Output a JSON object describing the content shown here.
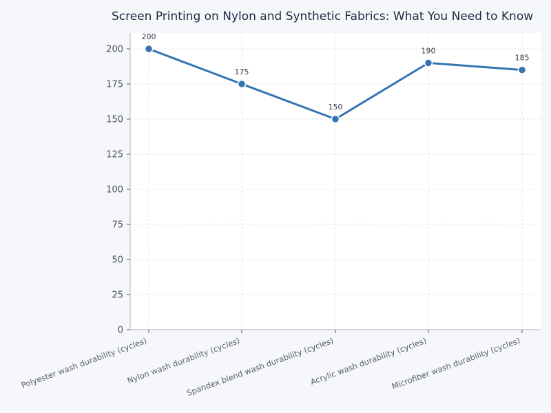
{
  "chart_data": {
    "type": "line",
    "title": "Screen Printing on Nylon and Synthetic Fabrics: What You Need to Know",
    "xlabel": "",
    "ylabel": "",
    "categories": [
      "Polyester wash durability (cycles)",
      "Nylon wash durability (cycles)",
      "Spandex blend wash durability (cycles)",
      "Acrylic wash durability (cycles)",
      "Microfiber wash durability (cycles)"
    ],
    "values": [
      200,
      175,
      150,
      190,
      185
    ],
    "data_labels": [
      "200",
      "175",
      "150",
      "190",
      "185"
    ],
    "ylim": [
      0,
      211
    ],
    "yticks": [
      0,
      25,
      50,
      75,
      100,
      125,
      150,
      175,
      200
    ],
    "grid": true,
    "legend": null,
    "colors": {
      "line": "#3574b2",
      "background": "#f5f7fb",
      "plot_bg": "#ffffff",
      "grid": "#dddddd",
      "title": "#1e2a3f"
    }
  }
}
